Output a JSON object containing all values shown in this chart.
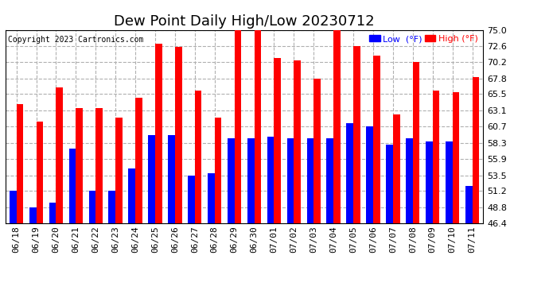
{
  "title": "Dew Point Daily High/Low 20230712",
  "copyright": "Copyright 2023 Cartronics.com",
  "legend_low": "Low  (°F)",
  "legend_high": "High (°F)",
  "dates": [
    "06/18",
    "06/19",
    "06/20",
    "06/21",
    "06/22",
    "06/23",
    "06/24",
    "06/25",
    "06/26",
    "06/27",
    "06/28",
    "06/29",
    "06/30",
    "07/01",
    "07/02",
    "07/03",
    "07/04",
    "07/05",
    "07/06",
    "07/07",
    "07/08",
    "07/09",
    "07/10",
    "07/11"
  ],
  "high": [
    64.0,
    61.5,
    66.5,
    63.5,
    63.5,
    62.0,
    65.0,
    73.0,
    72.5,
    66.0,
    62.0,
    75.0,
    75.0,
    70.8,
    70.5,
    67.8,
    75.0,
    72.6,
    71.2,
    62.5,
    70.2,
    66.0,
    65.8,
    68.0
  ],
  "low": [
    51.2,
    48.8,
    49.5,
    57.5,
    51.2,
    51.2,
    54.5,
    59.5,
    59.5,
    53.5,
    53.8,
    59.0,
    59.0,
    59.2,
    59.0,
    59.0,
    59.0,
    61.2,
    60.8,
    58.0,
    59.0,
    58.5,
    58.5,
    52.0
  ],
  "ylim_min": 46.4,
  "ylim_max": 75.0,
  "yticks": [
    46.4,
    48.8,
    51.2,
    53.5,
    55.9,
    58.3,
    60.7,
    63.1,
    65.5,
    67.8,
    70.2,
    72.6,
    75.0
  ],
  "bar_color_high": "#ff0000",
  "bar_color_low": "#0000ff",
  "background_color": "#ffffff",
  "grid_color": "#b0b0b0",
  "title_fontsize": 13,
  "tick_fontsize": 8,
  "bar_width": 0.35
}
